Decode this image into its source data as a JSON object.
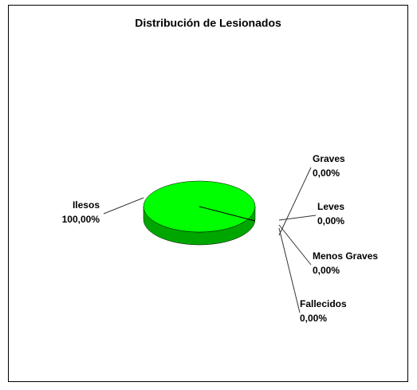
{
  "chart_data": {
    "type": "pie",
    "title": "Distribución de Lesionados",
    "categories": [
      "Ilesos",
      "Graves",
      "Leves",
      "Menos Graves",
      "Fallecidos"
    ],
    "values": [
      100,
      0,
      0,
      0,
      0
    ],
    "value_labels": [
      "100,00%",
      "0,00%",
      "0,00%",
      "0,00%",
      "0,00%"
    ],
    "colors": [
      "#00ff00",
      "#0000ff",
      "#ff0000",
      "#ffff00",
      "#ff00ff"
    ]
  }
}
